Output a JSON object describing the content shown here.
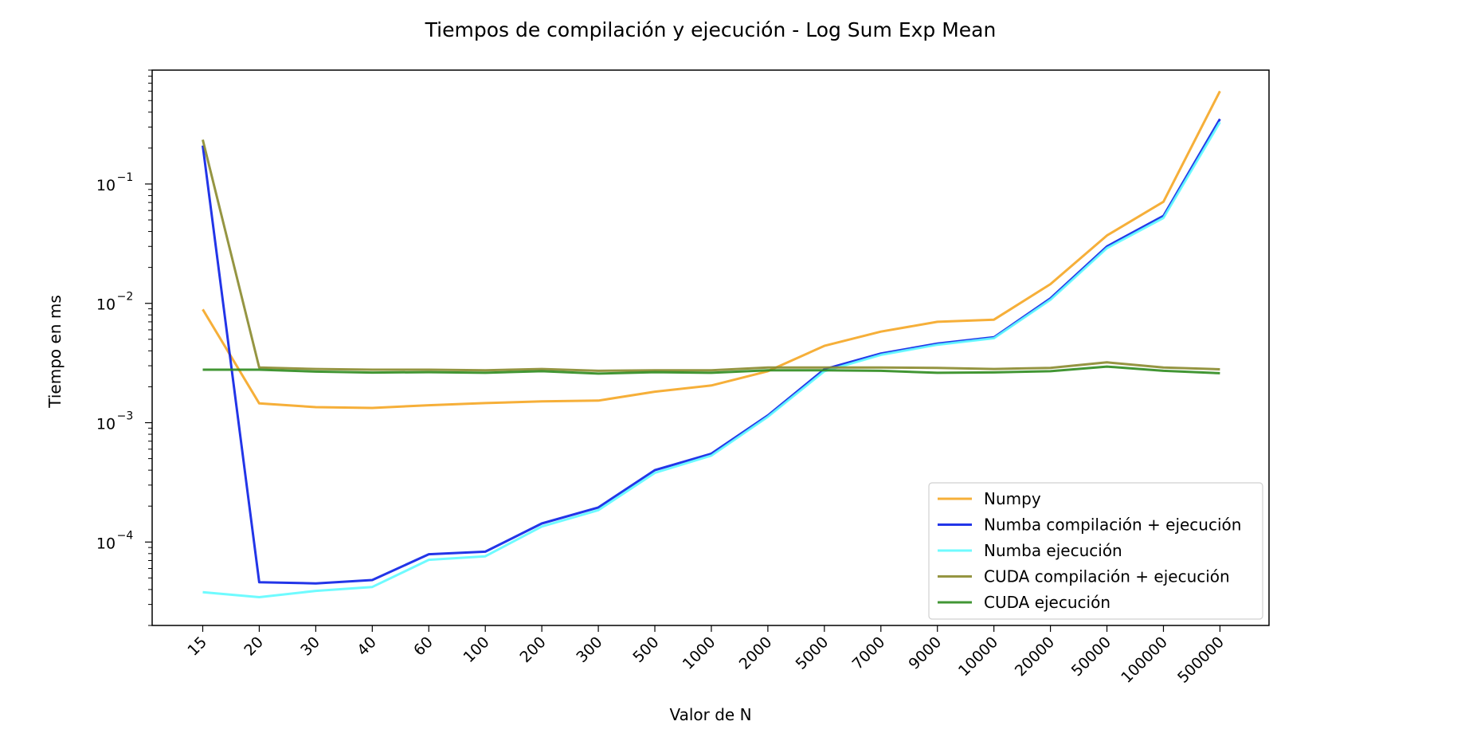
{
  "chart_data": {
    "type": "line",
    "title": "Tiempos de compilación y ejecución - Log Sum Exp Mean",
    "xlabel": "Valor de N",
    "ylabel": "Tiempo en ms",
    "yscale": "log",
    "ylim": [
      2e-05,
      0.9
    ],
    "yticks": [
      {
        "value": 0.1,
        "base": "10",
        "exp": "−1"
      },
      {
        "value": 0.01,
        "base": "10",
        "exp": "−2"
      },
      {
        "value": 0.001,
        "base": "10",
        "exp": "−3"
      },
      {
        "value": 0.0001,
        "base": "10",
        "exp": "−4"
      }
    ],
    "categories": [
      "15",
      "20",
      "30",
      "40",
      "60",
      "100",
      "200",
      "300",
      "500",
      "1000",
      "2000",
      "5000",
      "7000",
      "9000",
      "10000",
      "20000",
      "50000",
      "100000",
      "500000"
    ],
    "legend_position": "lower-right",
    "grid": false,
    "series": [
      {
        "name": "Numpy",
        "color": "#f5a623",
        "values": [
          0.0089,
          0.00145,
          0.00135,
          0.00133,
          0.0014,
          0.00146,
          0.00151,
          0.00153,
          0.00182,
          0.00205,
          0.0027,
          0.0044,
          0.0058,
          0.007,
          0.0073,
          0.0145,
          0.037,
          0.071,
          0.6
        ]
      },
      {
        "name": "Numba compilación + ejecución",
        "color": "#0a1fe6",
        "values": [
          0.21,
          4.6e-05,
          4.5e-05,
          4.8e-05,
          7.9e-05,
          8.3e-05,
          0.000143,
          0.000195,
          0.0004,
          0.00055,
          0.00115,
          0.0028,
          0.0038,
          0.0046,
          0.0052,
          0.011,
          0.03,
          0.054,
          0.35
        ]
      },
      {
        "name": "Numba ejecución",
        "color": "#5ffbff",
        "values": [
          3.8e-05,
          3.45e-05,
          3.9e-05,
          4.2e-05,
          7.1e-05,
          7.6e-05,
          0.000135,
          0.000185,
          0.00038,
          0.00053,
          0.00112,
          0.0027,
          0.0037,
          0.0045,
          0.0051,
          0.0107,
          0.029,
          0.052,
          0.33
        ]
      },
      {
        "name": "CUDA compilación + ejecución",
        "color": "#8a8a2e",
        "values": [
          0.235,
          0.0029,
          0.00282,
          0.00278,
          0.00278,
          0.00275,
          0.00282,
          0.00272,
          0.00275,
          0.00275,
          0.0029,
          0.0029,
          0.0029,
          0.00288,
          0.00282,
          0.00288,
          0.0032,
          0.0029,
          0.0028
        ]
      },
      {
        "name": "CUDA ejecución",
        "color": "#2e8b1e",
        "values": [
          0.00278,
          0.00278,
          0.00268,
          0.00263,
          0.00265,
          0.00262,
          0.0027,
          0.00258,
          0.00265,
          0.00262,
          0.00275,
          0.00275,
          0.00272,
          0.00262,
          0.00264,
          0.0027,
          0.00295,
          0.00272,
          0.0026
        ]
      }
    ]
  }
}
